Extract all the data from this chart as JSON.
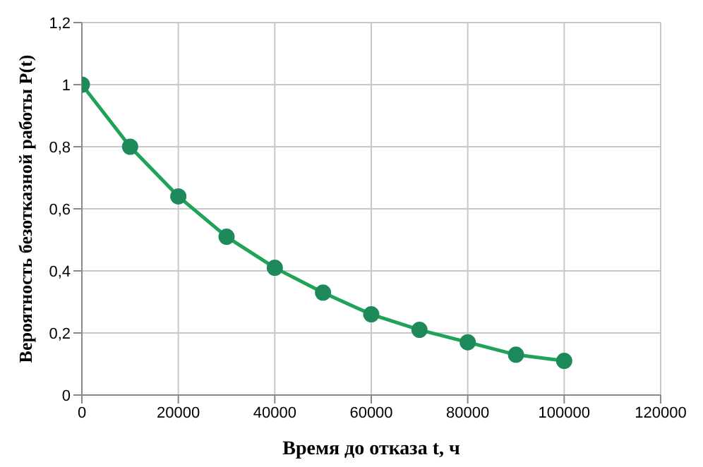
{
  "chart_data": {
    "type": "line",
    "xlabel": "Время до отказа t, ч",
    "ylabel": "Вероятность безотказной работы P(t)",
    "x": [
      0,
      10000,
      20000,
      30000,
      40000,
      50000,
      60000,
      70000,
      80000,
      90000,
      100000
    ],
    "series": [
      {
        "color": "#1fa356",
        "values": [
          1,
          0.8,
          0.64,
          0.51,
          0.41,
          0.33,
          0.26,
          0.21,
          0.17,
          0.13,
          0.11
        ]
      }
    ],
    "xlim": [
      0,
      120000
    ],
    "xticks": [
      0,
      20000,
      40000,
      60000,
      80000,
      100000,
      120000
    ],
    "ylim": [
      0,
      1.2
    ],
    "yticks": [
      0,
      {
        "value": 0.2,
        "label": "0,2"
      },
      {
        "value": 0.4,
        "label": "0,4"
      },
      {
        "value": 0.6,
        "label": "0,6"
      },
      {
        "value": 0.8,
        "label": "0,8"
      },
      1,
      {
        "value": 1.2,
        "label": "1,2"
      }
    ],
    "grid": true,
    "marker": "circle",
    "line_style": "solid"
  }
}
